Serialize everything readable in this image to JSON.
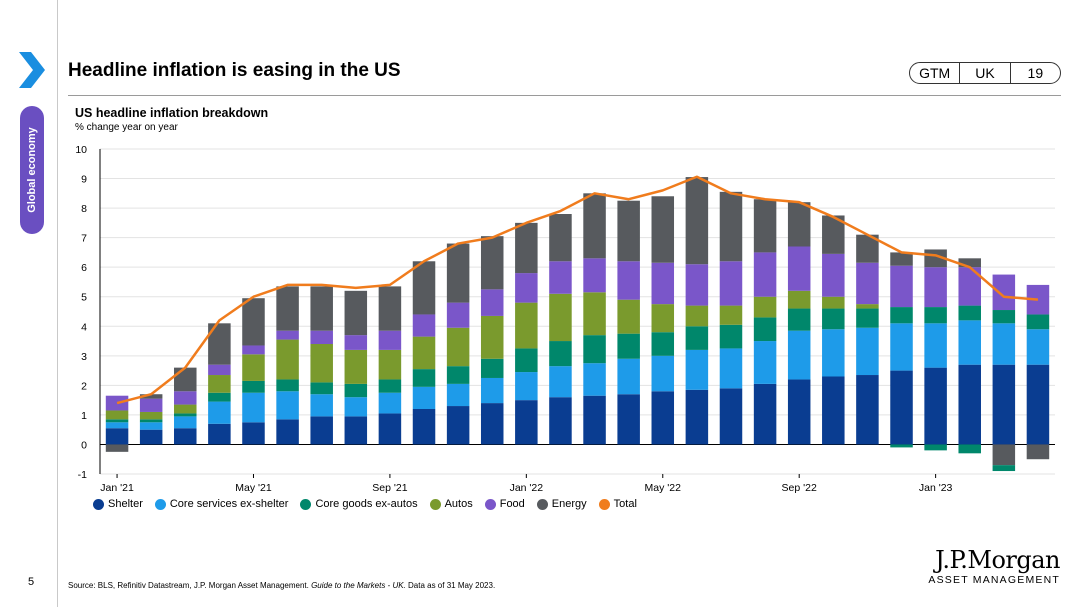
{
  "header": {
    "title": "Headline inflation is easing in the US",
    "badge": {
      "part1": "GTM",
      "part2": "UK",
      "part3": "19"
    }
  },
  "sidebar": {
    "section_label": "Global economy",
    "accent_color": "#6a4fc1",
    "chevron_color": "#1a8ee0"
  },
  "chart_data": {
    "type": "bar",
    "stacked": true,
    "title": "US headline inflation breakdown",
    "subtitle": "% change year on year",
    "ylim": [
      -1,
      10
    ],
    "yticks": [
      -1,
      0,
      1,
      2,
      3,
      4,
      5,
      6,
      7,
      8,
      9,
      10
    ],
    "grid": true,
    "legend_position": "bottom",
    "categories": [
      "Jan '21",
      "Feb '21",
      "Mar '21",
      "Apr '21",
      "May '21",
      "Jun '21",
      "Jul '21",
      "Aug '21",
      "Sep '21",
      "Oct '21",
      "Nov '21",
      "Dec '21",
      "Jan '22",
      "Feb '22",
      "Mar '22",
      "Apr '22",
      "May '22",
      "Jun '22",
      "Jul '22",
      "Aug '22",
      "Sep '22",
      "Oct '22",
      "Nov '22",
      "Dec '22",
      "Jan '23",
      "Feb '23",
      "Mar '23",
      "Apr '23"
    ],
    "x_tick_labels": [
      {
        "index": 0,
        "label": "Jan '21"
      },
      {
        "index": 4,
        "label": "May '21"
      },
      {
        "index": 8,
        "label": "Sep '21"
      },
      {
        "index": 12,
        "label": "Jan '22"
      },
      {
        "index": 16,
        "label": "May '22"
      },
      {
        "index": 20,
        "label": "Sep '22"
      },
      {
        "index": 24,
        "label": "Jan '23"
      }
    ],
    "series": [
      {
        "name": "Shelter",
        "color": "#0a3d91",
        "values": [
          0.55,
          0.5,
          0.55,
          0.7,
          0.75,
          0.85,
          0.95,
          0.95,
          1.05,
          1.2,
          1.3,
          1.4,
          1.5,
          1.6,
          1.65,
          1.7,
          1.8,
          1.85,
          1.9,
          2.05,
          2.2,
          2.3,
          2.35,
          2.5,
          2.6,
          2.7,
          2.7,
          2.7
        ]
      },
      {
        "name": "Core services ex-shelter",
        "color": "#1e9be9",
        "values": [
          0.2,
          0.25,
          0.4,
          0.75,
          1.0,
          0.95,
          0.75,
          0.65,
          0.7,
          0.75,
          0.75,
          0.85,
          0.95,
          1.05,
          1.1,
          1.2,
          1.2,
          1.35,
          1.35,
          1.45,
          1.65,
          1.6,
          1.6,
          1.6,
          1.5,
          1.5,
          1.4,
          1.2
        ]
      },
      {
        "name": "Core goods ex-autos",
        "color": "#00876b",
        "values": [
          0.1,
          0.1,
          0.1,
          0.3,
          0.4,
          0.4,
          0.4,
          0.45,
          0.45,
          0.6,
          0.6,
          0.65,
          0.8,
          0.85,
          0.95,
          0.85,
          0.8,
          0.8,
          0.8,
          0.8,
          0.75,
          0.7,
          0.65,
          0.55,
          0.55,
          0.5,
          0.45,
          0.5
        ]
      },
      {
        "name": "Autos",
        "color": "#7a9a2d",
        "values": [
          0.3,
          0.25,
          0.3,
          0.6,
          0.9,
          1.35,
          1.3,
          1.15,
          1.0,
          1.1,
          1.3,
          1.45,
          1.55,
          1.6,
          1.45,
          1.15,
          0.95,
          0.7,
          0.65,
          0.7,
          0.6,
          0.4,
          0.15,
          0.0,
          0.0,
          0.0,
          0.0,
          0.0
        ]
      },
      {
        "name": "Food",
        "color": "#7a56c9",
        "values": [
          0.5,
          0.45,
          0.45,
          0.35,
          0.3,
          0.3,
          0.45,
          0.5,
          0.65,
          0.75,
          0.85,
          0.9,
          1.0,
          1.1,
          1.15,
          1.3,
          1.4,
          1.4,
          1.5,
          1.5,
          1.5,
          1.45,
          1.4,
          1.4,
          1.35,
          1.3,
          1.2,
          1.0
        ]
      },
      {
        "name": "Energy",
        "color": "#575a5e",
        "values": [
          -0.25,
          0.15,
          0.8,
          1.4,
          1.6,
          1.5,
          1.5,
          1.5,
          1.5,
          1.8,
          2.0,
          1.8,
          1.7,
          1.6,
          2.2,
          2.05,
          2.25,
          2.95,
          2.35,
          1.8,
          1.5,
          1.3,
          0.95,
          0.45,
          0.6,
          0.3,
          -0.7,
          -0.5
        ]
      },
      {
        "name": "Total",
        "color": "#f07c1d",
        "type": "line",
        "values": [
          1.4,
          1.7,
          2.6,
          4.2,
          5.0,
          5.4,
          5.4,
          5.3,
          5.4,
          6.2,
          6.8,
          7.0,
          7.5,
          7.9,
          8.5,
          8.3,
          8.6,
          9.06,
          8.5,
          8.3,
          8.2,
          7.7,
          7.1,
          6.5,
          6.4,
          6.0,
          5.0,
          4.9
        ]
      }
    ],
    "negative_parts": [
      {
        "index": 23,
        "name": "Core goods ex-autos",
        "value": -0.1
      },
      {
        "index": 24,
        "name": "Core goods ex-autos",
        "value": -0.2
      },
      {
        "index": 25,
        "name": "Core goods ex-autos",
        "value": -0.3
      },
      {
        "index": 26,
        "name": "Core goods ex-autos",
        "value": -0.2
      }
    ]
  },
  "footer": {
    "page_number": "5",
    "source_prefix": "Source: BLS, Refinitiv Datastream, J.P. Morgan Asset Management. ",
    "source_italic": "Guide to the Markets - UK.",
    "source_suffix": " Data as of 31 May 2023.",
    "logo_name": "J.P.Morgan",
    "logo_sub": "ASSET MANAGEMENT"
  }
}
